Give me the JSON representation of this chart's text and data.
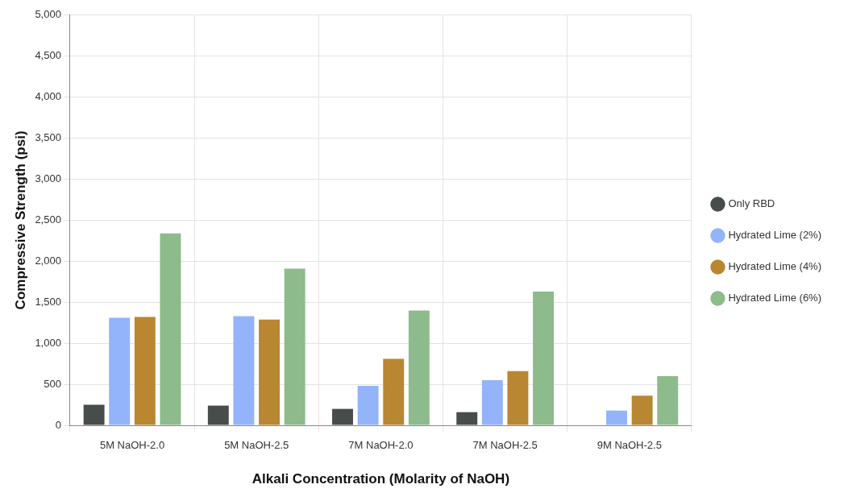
{
  "chart_data": {
    "type": "bar",
    "xlabel": "Alkali Concentration (Molarity of NaOH)",
    "ylabel": "Compressive Strength (psi)",
    "categories": [
      "5M NaOH-2.0",
      "5M NaOH-2.5",
      "7M NaOH-2.0",
      "7M NaOH-2.5",
      "9M NaOH-2.5"
    ],
    "series": [
      {
        "name": "Only RBD",
        "color": "#464d4b",
        "values": [
          250,
          240,
          200,
          160,
          null
        ]
      },
      {
        "name": "Hydrated Lime (2%)",
        "color": "#93b3fb",
        "values": [
          1310,
          1330,
          480,
          550,
          180
        ]
      },
      {
        "name": "Hydrated Lime (4%)",
        "color": "#b98632",
        "values": [
          1320,
          1290,
          810,
          660,
          360
        ]
      },
      {
        "name": "Hydrated Lime (6%)",
        "color": "#8dbb8b",
        "values": [
          2340,
          1910,
          1400,
          1630,
          600
        ]
      }
    ],
    "ylim": [
      0,
      5000
    ],
    "yticks": [
      0,
      500,
      {
        "value": 1000,
        "label": "1,000"
      },
      {
        "value": 1500,
        "label": "1,500"
      },
      {
        "value": 2000,
        "label": "2,000"
      },
      {
        "value": 2500,
        "label": "2,500"
      },
      {
        "value": 3000,
        "label": "3,000"
      },
      {
        "value": 3500,
        "label": "3,500"
      },
      {
        "value": 4000,
        "label": "4,000"
      },
      {
        "value": 4500,
        "label": "4,500"
      },
      {
        "value": 5000,
        "label": "5,000"
      }
    ],
    "grid": true,
    "legend": "right"
  }
}
